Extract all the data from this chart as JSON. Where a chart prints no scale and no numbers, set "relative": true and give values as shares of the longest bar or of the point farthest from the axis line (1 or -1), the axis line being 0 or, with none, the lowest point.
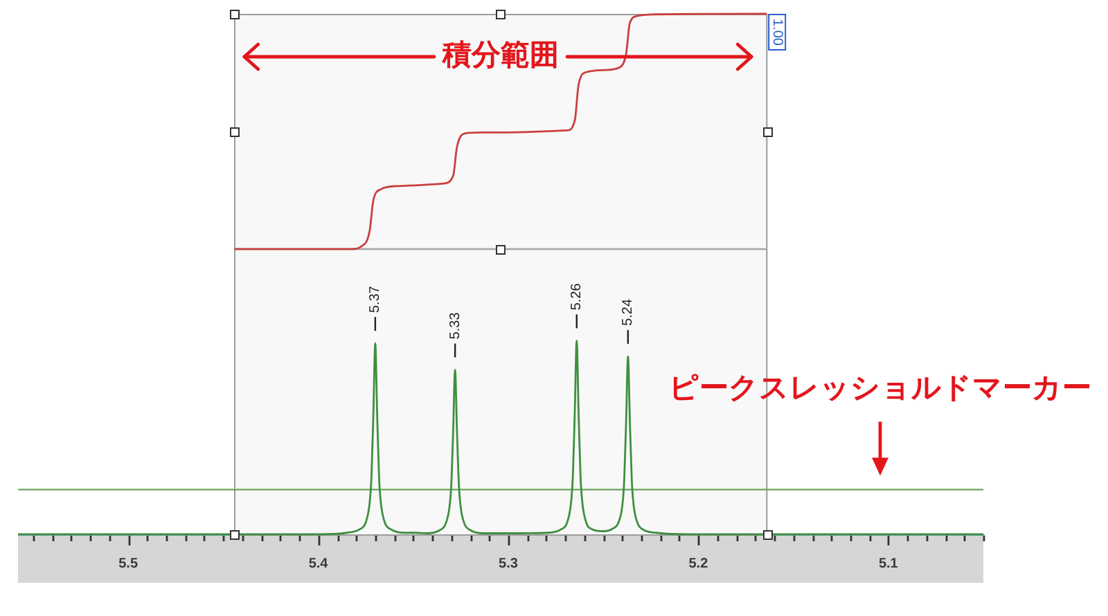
{
  "chart_data": {
    "type": "line",
    "relative": true,
    "marker": "none",
    "tick_labels": "x",
    "xlim": [
      5.558,
      5.05
    ],
    "xticks": [
      {
        "value": 5.55,
        "label": null
      },
      {
        "value": 5.54,
        "label": null
      },
      {
        "value": 5.53,
        "label": null
      },
      {
        "value": 5.52,
        "label": null
      },
      {
        "value": 5.51,
        "label": null
      },
      5.5,
      {
        "value": 5.49,
        "label": null
      },
      {
        "value": 5.48,
        "label": null
      },
      {
        "value": 5.47,
        "label": null
      },
      {
        "value": 5.46,
        "label": null
      },
      {
        "value": 5.45,
        "label": null
      },
      {
        "value": 5.44,
        "label": null
      },
      {
        "value": 5.43,
        "label": null
      },
      {
        "value": 5.42,
        "label": null
      },
      {
        "value": 5.41,
        "label": null
      },
      5.4,
      {
        "value": 5.39,
        "label": null
      },
      {
        "value": 5.38,
        "label": null
      },
      {
        "value": 5.37,
        "label": null
      },
      {
        "value": 5.36,
        "label": null
      },
      {
        "value": 5.35,
        "label": null
      },
      {
        "value": 5.34,
        "label": null
      },
      {
        "value": 5.33,
        "label": null
      },
      {
        "value": 5.32,
        "label": null
      },
      {
        "value": 5.31,
        "label": null
      },
      5.3,
      {
        "value": 5.29,
        "label": null
      },
      {
        "value": 5.28,
        "label": null
      },
      {
        "value": 5.27,
        "label": null
      },
      {
        "value": 5.26,
        "label": null
      },
      {
        "value": 5.25,
        "label": null
      },
      {
        "value": 5.24,
        "label": null
      },
      {
        "value": 5.23,
        "label": null
      },
      {
        "value": 5.22,
        "label": null
      },
      {
        "value": 5.21,
        "label": null
      },
      5.2,
      {
        "value": 5.19,
        "label": null
      },
      {
        "value": 5.18,
        "label": null
      },
      {
        "value": 5.17,
        "label": null
      },
      {
        "value": 5.16,
        "label": null
      },
      {
        "value": 5.15,
        "label": null
      },
      {
        "value": 5.14,
        "label": null
      },
      {
        "value": 5.13,
        "label": null
      },
      {
        "value": 5.12,
        "label": null
      },
      {
        "value": 5.11,
        "label": null
      },
      5.1,
      {
        "value": 5.09,
        "label": null
      },
      {
        "value": 5.08,
        "label": null
      },
      {
        "value": 5.07,
        "label": null
      },
      {
        "value": 5.06,
        "label": null
      },
      {
        "value": 5.05,
        "label": null
      }
    ],
    "series": [
      {
        "color": "#3f8f3f",
        "x": [
          5.558,
          5.4,
          5.385,
          5.378,
          5.375,
          5.373,
          5.372,
          5.371,
          5.37,
          5.369,
          5.368,
          5.367,
          5.365,
          5.362,
          5.355,
          5.349,
          5.343,
          5.336,
          5.333,
          5.331,
          5.33,
          5.329,
          5.328,
          5.327,
          5.326,
          5.325,
          5.323,
          5.32,
          5.313,
          5.295,
          5.279,
          5.272,
          5.269,
          5.267,
          5.266,
          5.265,
          5.264,
          5.263,
          5.262,
          5.261,
          5.259,
          5.256,
          5.25,
          5.245,
          5.242,
          5.24,
          5.239,
          5.238,
          5.237,
          5.236,
          5.235,
          5.234,
          5.232,
          5.229,
          5.222,
          5.205,
          5.05
        ],
        "values": [
          0,
          0,
          0.003,
          0.01,
          0.023,
          0.059,
          0.11,
          0.231,
          0.367,
          0.231,
          0.11,
          0.059,
          0.023,
          0.01,
          0.003,
          0.003,
          0.002,
          0.008,
          0.02,
          0.051,
          0.095,
          0.199,
          0.316,
          0.199,
          0.095,
          0.051,
          0.02,
          0.008,
          0.002,
          0.002,
          0.003,
          0.01,
          0.023,
          0.06,
          0.112,
          0.234,
          0.372,
          0.234,
          0.112,
          0.06,
          0.023,
          0.01,
          0.006,
          0.011,
          0.023,
          0.055,
          0.103,
          0.215,
          0.342,
          0.215,
          0.103,
          0.055,
          0.022,
          0.009,
          0.003,
          0,
          0
        ]
      },
      {
        "color": "#c8403f",
        "x": [
          5.444,
          5.383,
          5.377,
          5.373,
          5.371,
          5.367,
          5.359,
          5.334,
          5.329,
          5.327,
          5.323,
          5.315,
          5.269,
          5.265,
          5.263,
          5.259,
          5.249,
          5.241,
          5.238,
          5.236,
          5.232,
          5.223,
          5.164
        ],
        "values": [
          0.548,
          0.548,
          0.554,
          0.582,
          0.642,
          0.663,
          0.669,
          0.674,
          0.689,
          0.744,
          0.77,
          0.772,
          0.776,
          0.795,
          0.864,
          0.888,
          0.892,
          0.898,
          0.923,
          0.983,
          0.996,
          0.999,
          1
        ]
      },
      {
        "color": "#a9a9a9",
        "x": [
          5.444,
          5.164
        ],
        "values": [
          0.548,
          0.548
        ]
      }
    ],
    "bands": [
      {
        "axis": "x",
        "from": 5.444,
        "to": 5.164,
        "label": "積分範囲",
        "color": "#9b9b9b"
      }
    ],
    "ref_lines": [
      {
        "axis": "y",
        "value": 0.086,
        "label": "ピークスレッショルドマーカー",
        "color": "#6aa35a"
      }
    ],
    "annotations": [
      {
        "text": "5.37",
        "x": 5.37,
        "y": 0.367
      },
      {
        "text": "5.33",
        "x": 5.328,
        "y": 0.316
      },
      {
        "text": "5.26",
        "x": 5.264,
        "y": 0.372
      },
      {
        "text": "5.24",
        "x": 5.237,
        "y": 0.342
      },
      {
        "text": "1.00",
        "x": 5.164
      }
    ]
  }
}
